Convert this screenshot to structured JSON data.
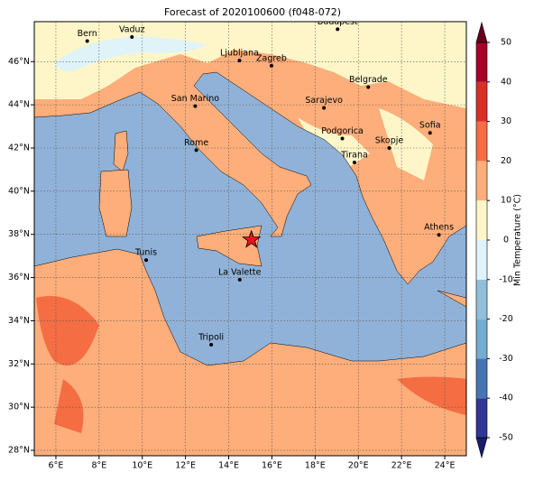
{
  "title": "Forecast of 2020100600 (f048-072)",
  "map": {
    "lon_range": [
      5,
      25
    ],
    "lat_range": [
      27.75,
      47.85
    ],
    "lon_ticks": [
      {
        "value": 6,
        "label": "6°E"
      },
      {
        "value": 8,
        "label": "8°E"
      },
      {
        "value": 10,
        "label": "10°E"
      },
      {
        "value": 12,
        "label": "12°E"
      },
      {
        "value": 14,
        "label": "14°E"
      },
      {
        "value": 16,
        "label": "16°E"
      },
      {
        "value": 18,
        "label": "18°E"
      },
      {
        "value": 20,
        "label": "20°E"
      },
      {
        "value": 22,
        "label": "22°E"
      },
      {
        "value": 24,
        "label": "24°E"
      }
    ],
    "lat_ticks": [
      {
        "value": 28,
        "label": "28°N"
      },
      {
        "value": 30,
        "label": "30°N"
      },
      {
        "value": 32,
        "label": "32°N"
      },
      {
        "value": 34,
        "label": "34°N"
      },
      {
        "value": 36,
        "label": "36°N"
      },
      {
        "value": 38,
        "label": "38°N"
      },
      {
        "value": 40,
        "label": "40°N"
      },
      {
        "value": 42,
        "label": "42°N"
      },
      {
        "value": 44,
        "label": "44°N"
      },
      {
        "value": 46,
        "label": "46°N"
      }
    ],
    "cities": [
      {
        "name": "Bern",
        "lon": 7.45,
        "lat": 46.95
      },
      {
        "name": "Vaduz",
        "lon": 9.52,
        "lat": 47.14
      },
      {
        "name": "Budapest",
        "lon": 19.04,
        "lat": 47.5
      },
      {
        "name": "Ljubljana",
        "lon": 14.5,
        "lat": 46.05
      },
      {
        "name": "Zagreb",
        "lon": 15.98,
        "lat": 45.81
      },
      {
        "name": "Belgrade",
        "lon": 20.46,
        "lat": 44.82
      },
      {
        "name": "San Marino",
        "lon": 12.45,
        "lat": 43.94
      },
      {
        "name": "Sarajevo",
        "lon": 18.41,
        "lat": 43.86
      },
      {
        "name": "Sofia",
        "lon": 23.32,
        "lat": 42.7
      },
      {
        "name": "Podgorica",
        "lon": 19.26,
        "lat": 42.44
      },
      {
        "name": "Skopje",
        "lon": 21.43,
        "lat": 42.0
      },
      {
        "name": "Rome",
        "lon": 12.5,
        "lat": 41.9
      },
      {
        "name": "Tirana",
        "lon": 19.82,
        "lat": 41.33
      },
      {
        "name": "Athens",
        "lon": 23.73,
        "lat": 37.98
      },
      {
        "name": "Tunis",
        "lon": 10.18,
        "lat": 36.81
      },
      {
        "name": "La Valette",
        "lon": 14.51,
        "lat": 35.9
      },
      {
        "name": "Tripoli",
        "lon": 13.19,
        "lat": 32.89
      }
    ],
    "marker": {
      "lon": 15.05,
      "lat": 37.75,
      "color": "#e8141c"
    }
  },
  "colorbar": {
    "label": "Min Temperature (°C)",
    "ticks": [
      -50,
      -40,
      -30,
      -20,
      -10,
      0,
      10,
      20,
      30,
      40,
      50
    ],
    "colors": [
      "#313695",
      "#4575b4",
      "#74add1",
      "#91bfdb",
      "#e0f3f8",
      "#fef6c8",
      "#fdae7a",
      "#f46d43",
      "#d73027",
      "#a50026"
    ],
    "under": "#1a1c6e",
    "over": "#67001f"
  }
}
